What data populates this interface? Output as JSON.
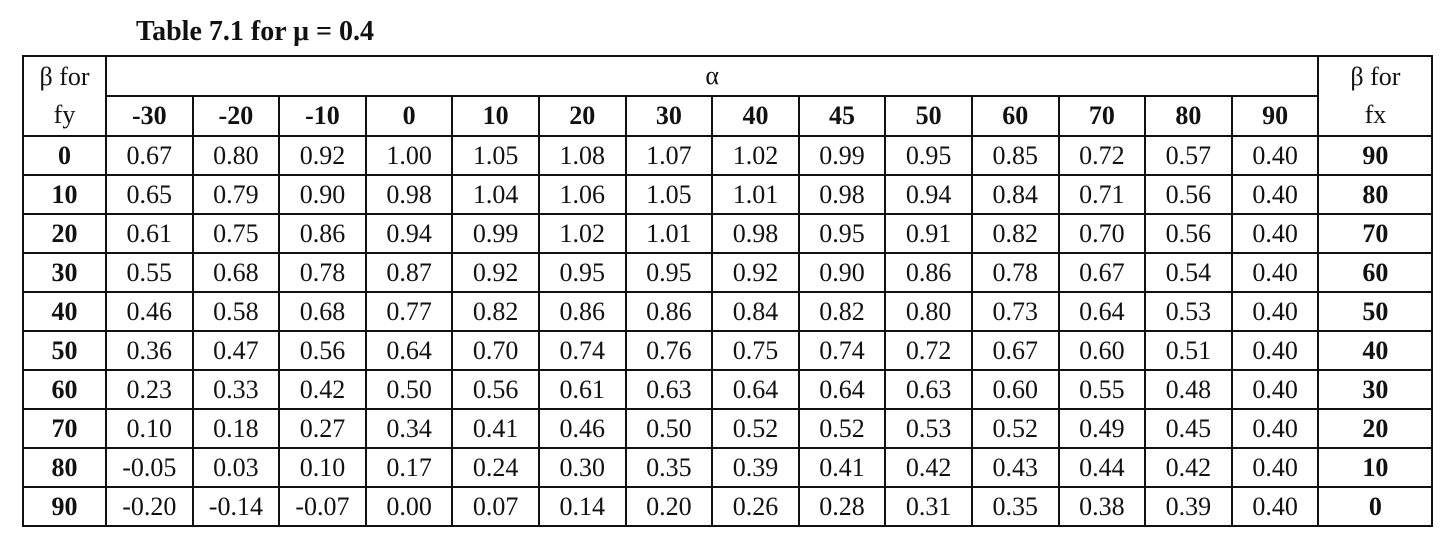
{
  "title": "Table 7.1 for μ = 0.4",
  "table": {
    "left_header": [
      "β for",
      "fy"
    ],
    "span_header": "α",
    "right_header": [
      "β for",
      "fx"
    ],
    "columns": [
      "-30",
      "-20",
      "-10",
      "0",
      "10",
      "20",
      "30",
      "40",
      "45",
      "50",
      "60",
      "70",
      "80",
      "90"
    ],
    "rows": [
      {
        "label": "0",
        "cells": [
          "0.67",
          "0.80",
          "0.92",
          "1.00",
          "1.05",
          "1.08",
          "1.07",
          "1.02",
          "0.99",
          "0.95",
          "0.85",
          "0.72",
          "0.57",
          "0.40"
        ],
        "right": "90"
      },
      {
        "label": "10",
        "cells": [
          "0.65",
          "0.79",
          "0.90",
          "0.98",
          "1.04",
          "1.06",
          "1.05",
          "1.01",
          "0.98",
          "0.94",
          "0.84",
          "0.71",
          "0.56",
          "0.40"
        ],
        "right": "80"
      },
      {
        "label": "20",
        "cells": [
          "0.61",
          "0.75",
          "0.86",
          "0.94",
          "0.99",
          "1.02",
          "1.01",
          "0.98",
          "0.95",
          "0.91",
          "0.82",
          "0.70",
          "0.56",
          "0.40"
        ],
        "right": "70"
      },
      {
        "label": "30",
        "cells": [
          "0.55",
          "0.68",
          "0.78",
          "0.87",
          "0.92",
          "0.95",
          "0.95",
          "0.92",
          "0.90",
          "0.86",
          "0.78",
          "0.67",
          "0.54",
          "0.40"
        ],
        "right": "60"
      },
      {
        "label": "40",
        "cells": [
          "0.46",
          "0.58",
          "0.68",
          "0.77",
          "0.82",
          "0.86",
          "0.86",
          "0.84",
          "0.82",
          "0.80",
          "0.73",
          "0.64",
          "0.53",
          "0.40"
        ],
        "right": "50"
      },
      {
        "label": "50",
        "cells": [
          "0.36",
          "0.47",
          "0.56",
          "0.64",
          "0.70",
          "0.74",
          "0.76",
          "0.75",
          "0.74",
          "0.72",
          "0.67",
          "0.60",
          "0.51",
          "0.40"
        ],
        "right": "40"
      },
      {
        "label": "60",
        "cells": [
          "0.23",
          "0.33",
          "0.42",
          "0.50",
          "0.56",
          "0.61",
          "0.63",
          "0.64",
          "0.64",
          "0.63",
          "0.60",
          "0.55",
          "0.48",
          "0.40"
        ],
        "right": "30"
      },
      {
        "label": "70",
        "cells": [
          "0.10",
          "0.18",
          "0.27",
          "0.34",
          "0.41",
          "0.46",
          "0.50",
          "0.52",
          "0.52",
          "0.53",
          "0.52",
          "0.49",
          "0.45",
          "0.40"
        ],
        "right": "20"
      },
      {
        "label": "80",
        "cells": [
          "-0.05",
          "0.03",
          "0.10",
          "0.17",
          "0.24",
          "0.30",
          "0.35",
          "0.39",
          "0.41",
          "0.42",
          "0.43",
          "0.44",
          "0.42",
          "0.40"
        ],
        "right": "10"
      },
      {
        "label": "90",
        "cells": [
          "-0.20",
          "-0.14",
          "-0.07",
          "0.00",
          "0.07",
          "0.14",
          "0.20",
          "0.26",
          "0.28",
          "0.31",
          "0.35",
          "0.38",
          "0.39",
          "0.40"
        ],
        "right": "0"
      }
    ]
  }
}
